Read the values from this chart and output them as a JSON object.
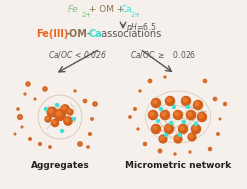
{
  "title_line1_parts": [
    {
      "text": "Fe",
      "color": "#7fc97f",
      "style": "normal"
    },
    {
      "text": "2+",
      "color": "#7fc97f",
      "style": "superscript"
    },
    {
      "text": " + OM + ",
      "color": "#8B7355",
      "style": "normal"
    },
    {
      "text": "Ca",
      "color": "#40E0D0",
      "style": "normal"
    },
    {
      "text": "2+",
      "color": "#40E0D0",
      "style": "superscript"
    }
  ],
  "ph_text": "pH=6.5",
  "association_line": [
    {
      "text": "Fe(III)",
      "color": "#E8651A"
    },
    {
      "text": "-OM-",
      "color": "#8B7355"
    },
    {
      "text": "Ca",
      "color": "#40E0D0"
    },
    {
      "text": " associations",
      "color": "#555555"
    }
  ],
  "left_label": "Ca/OC < 0.026",
  "right_label": "Ca/OC ≥   0.026",
  "bottom_left": "Aggregates",
  "bottom_right": "Micrometric network",
  "bg_color": "#f5f0eb",
  "orange_color": "#D2601A",
  "tan_color": "#C8A882",
  "cyan_color": "#40E0D0",
  "dot_color": "#D2601A"
}
